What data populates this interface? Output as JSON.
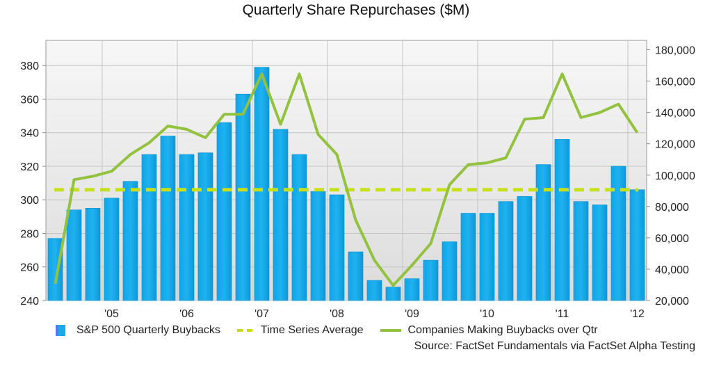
{
  "chart_data": {
    "type": "bar",
    "title": "Quarterly Share Repurchases ($M)",
    "source": "Source: FactSet Fundamentals via FactSet Alpha Testing",
    "x_tick_labels": [
      "'05",
      "'06",
      "'07",
      "'08",
      "'09",
      "'10",
      "'11",
      "'12"
    ],
    "y_left": {
      "ticks": [
        240,
        260,
        280,
        300,
        320,
        340,
        360,
        380
      ],
      "range": [
        240,
        395
      ]
    },
    "y_right": {
      "ticks": [
        "20,000",
        "40,000",
        "60,000",
        "80,000",
        "100,000",
        "120,000",
        "140,000",
        "160,000",
        "180,000"
      ],
      "range": [
        20000,
        186000
      ]
    },
    "grid": true,
    "legend_position": "bottom",
    "series": [
      {
        "name": "S&P 500 Quarterly Buybacks",
        "type": "bar",
        "axis": "left",
        "color": "#1aa9e9",
        "values": [
          277,
          294,
          295,
          301,
          311,
          327,
          338,
          327,
          328,
          346,
          363,
          379,
          342,
          327,
          305,
          303,
          269,
          252,
          248,
          253,
          264,
          275,
          292,
          292,
          299,
          302,
          321,
          336,
          299,
          297,
          320,
          306
        ]
      },
      {
        "name": "Time Series Average",
        "type": "dashed-line",
        "axis": "left",
        "color": "#c8e019",
        "value": 306
      },
      {
        "name": "Companies Making Buybacks over Qtr",
        "type": "line",
        "axis": "left",
        "color": "#92c23e",
        "values": [
          250,
          312,
          314,
          317,
          327,
          334,
          344,
          342,
          337,
          351,
          351,
          375,
          345,
          375,
          339,
          327,
          288,
          264,
          249,
          261,
          274,
          309,
          321,
          322,
          325,
          348,
          349,
          375,
          349,
          352,
          357,
          340
        ]
      }
    ]
  }
}
